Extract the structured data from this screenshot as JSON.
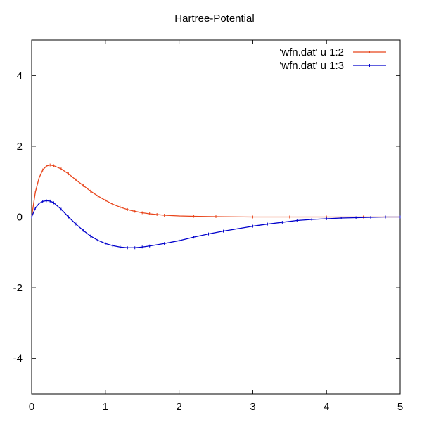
{
  "chart_data": {
    "type": "line",
    "title": "Hartree-Potential",
    "xlabel": "",
    "ylabel": "",
    "xlim": [
      0,
      5
    ],
    "ylim": [
      -5,
      5
    ],
    "x_ticks": [
      0,
      1,
      2,
      3,
      4,
      5
    ],
    "y_ticks": [
      -4,
      -2,
      0,
      2,
      4
    ],
    "x_tick_labels": [
      "0",
      "1",
      "2",
      "3",
      "4",
      "5"
    ],
    "y_tick_labels": [
      "-4",
      "-2",
      "0",
      "2",
      "4"
    ],
    "grid": false,
    "legend_position": "top-right",
    "series": [
      {
        "name": "'wfn.dat' u 1:2",
        "color": "#e8441a",
        "points": [
          [
            0,
            0
          ],
          [
            0.05,
            0.7
          ],
          [
            0.1,
            1.1
          ],
          [
            0.15,
            1.33
          ],
          [
            0.2,
            1.44
          ],
          [
            0.25,
            1.47
          ],
          [
            0.3,
            1.45
          ],
          [
            0.4,
            1.36
          ],
          [
            0.5,
            1.22
          ],
          [
            0.6,
            1.05
          ],
          [
            0.7,
            0.89
          ],
          [
            0.8,
            0.73
          ],
          [
            0.9,
            0.59
          ],
          [
            1.0,
            0.47
          ],
          [
            1.1,
            0.36
          ],
          [
            1.2,
            0.28
          ],
          [
            1.3,
            0.21
          ],
          [
            1.4,
            0.16
          ],
          [
            1.5,
            0.12
          ],
          [
            1.6,
            0.09
          ],
          [
            1.7,
            0.07
          ],
          [
            1.8,
            0.05
          ],
          [
            2.0,
            0.03
          ],
          [
            2.2,
            0.02
          ],
          [
            2.5,
            0.01
          ],
          [
            3.0,
            0.0
          ],
          [
            3.5,
            0.0
          ],
          [
            4.0,
            0.0
          ],
          [
            4.5,
            0.0
          ],
          [
            5.0,
            0.0
          ]
        ]
      },
      {
        "name": "'wfn.dat' u 1:3",
        "color": "#0000cc",
        "points": [
          [
            0,
            0
          ],
          [
            0.05,
            0.25
          ],
          [
            0.1,
            0.38
          ],
          [
            0.15,
            0.44
          ],
          [
            0.2,
            0.46
          ],
          [
            0.25,
            0.45
          ],
          [
            0.3,
            0.4
          ],
          [
            0.4,
            0.22
          ],
          [
            0.5,
            0.0
          ],
          [
            0.6,
            -0.2
          ],
          [
            0.7,
            -0.38
          ],
          [
            0.8,
            -0.54
          ],
          [
            0.9,
            -0.66
          ],
          [
            1.0,
            -0.75
          ],
          [
            1.1,
            -0.81
          ],
          [
            1.2,
            -0.85
          ],
          [
            1.3,
            -0.87
          ],
          [
            1.4,
            -0.87
          ],
          [
            1.5,
            -0.85
          ],
          [
            1.6,
            -0.82
          ],
          [
            1.8,
            -0.75
          ],
          [
            2.0,
            -0.67
          ],
          [
            2.2,
            -0.57
          ],
          [
            2.4,
            -0.48
          ],
          [
            2.6,
            -0.4
          ],
          [
            2.8,
            -0.33
          ],
          [
            3.0,
            -0.26
          ],
          [
            3.2,
            -0.2
          ],
          [
            3.4,
            -0.15
          ],
          [
            3.6,
            -0.1
          ],
          [
            3.8,
            -0.07
          ],
          [
            4.0,
            -0.05
          ],
          [
            4.2,
            -0.03
          ],
          [
            4.4,
            -0.02
          ],
          [
            4.6,
            -0.01
          ],
          [
            4.8,
            0.0
          ],
          [
            5.0,
            0.0
          ]
        ]
      }
    ]
  }
}
